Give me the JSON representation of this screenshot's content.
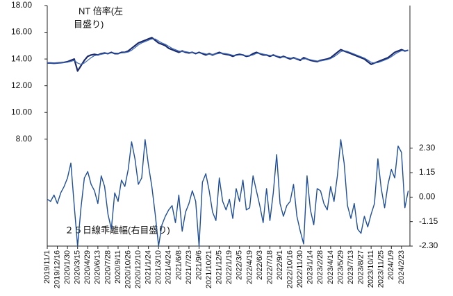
{
  "chart_data": {
    "type": "line",
    "annotations": [
      "NT 倍率(左",
      "目盛り)",
      "２５日線乖離幅(右目盛り)"
    ],
    "categories": [
      "2019/11/1",
      null,
      null,
      "2019/12/16",
      null,
      null,
      "2020/1/30",
      null,
      null,
      "2020/3/15",
      null,
      null,
      "2020/4/29",
      null,
      null,
      "2020/6/13",
      null,
      null,
      "2020/7/28",
      null,
      null,
      "2020/9/11",
      null,
      null,
      "2020/10/26",
      null,
      null,
      "2020/12/10",
      null,
      null,
      "2021/1/24",
      null,
      null,
      "2021/3/10",
      null,
      null,
      "2021/4/24",
      null,
      null,
      "2021/6/8",
      null,
      null,
      "2021/7/23",
      null,
      null,
      "2021/9/6",
      null,
      null,
      "2021/10/21",
      null,
      null,
      "2021/12/5",
      null,
      null,
      "2022/1/19",
      null,
      null,
      "2022/3/5",
      null,
      null,
      "2022/4/19",
      null,
      null,
      "2022/6/3",
      null,
      null,
      "2022/7/18",
      null,
      null,
      "2022/9/1",
      null,
      null,
      "2022/10/16",
      null,
      null,
      "2022/11/30",
      null,
      null,
      "2023/1/14",
      null,
      null,
      "2023/2/28",
      null,
      null,
      "2023/4/14",
      null,
      null,
      "2023/5/29",
      null,
      null,
      "2023/7/13",
      null,
      null,
      "2023/8/27",
      null,
      null,
      "2023/10/11",
      null,
      null,
      "2023/11/25",
      null,
      null,
      "2024/1/9",
      null,
      null,
      "2024/2/23",
      null,
      null
    ],
    "series": [
      {
        "color": "#1b2a6b",
        "values": [
          13.7,
          13.7,
          13.68,
          13.7,
          13.72,
          13.75,
          13.8,
          13.9,
          14.0,
          13.1,
          13.5,
          13.9,
          14.2,
          14.3,
          14.35,
          14.3,
          14.4,
          14.45,
          14.4,
          14.5,
          14.4,
          14.4,
          14.5,
          14.5,
          14.6,
          14.8,
          15.0,
          15.2,
          15.3,
          15.4,
          15.5,
          15.6,
          15.4,
          15.2,
          15.1,
          15.0,
          14.8,
          14.7,
          14.6,
          14.5,
          14.6,
          14.5,
          14.45,
          14.5,
          14.4,
          14.5,
          14.4,
          14.3,
          14.4,
          14.3,
          14.4,
          14.5,
          14.4,
          14.35,
          14.3,
          14.2,
          14.3,
          14.35,
          14.3,
          14.2,
          14.25,
          14.4,
          14.5,
          14.4,
          14.3,
          14.3,
          14.2,
          14.3,
          14.2,
          14.1,
          14.2,
          14.1,
          14.0,
          14.1,
          14.0,
          13.9,
          14.1,
          14.0,
          13.9,
          13.85,
          13.8,
          13.9,
          13.95,
          14.0,
          14.1,
          14.3,
          14.5,
          14.7,
          14.6,
          14.5,
          14.4,
          14.3,
          14.2,
          14.1,
          14.0,
          13.8,
          13.6,
          13.7,
          13.8,
          13.9,
          14.0,
          14.1,
          14.3,
          14.5,
          14.6,
          14.7,
          14.6,
          14.65
        ]
      },
      {
        "color": "#3a66b8",
        "values": [
          13.7,
          13.7,
          13.7,
          13.7,
          13.71,
          13.73,
          13.76,
          13.82,
          13.9,
          13.7,
          13.6,
          13.7,
          13.9,
          14.1,
          14.25,
          14.3,
          14.35,
          14.4,
          14.42,
          14.45,
          14.45,
          14.43,
          14.45,
          14.48,
          14.52,
          14.65,
          14.85,
          15.05,
          15.2,
          15.3,
          15.4,
          15.5,
          15.5,
          15.35,
          15.2,
          15.1,
          14.95,
          14.8,
          14.7,
          14.6,
          14.55,
          14.55,
          14.5,
          14.48,
          14.45,
          14.45,
          14.45,
          14.38,
          14.35,
          14.35,
          14.37,
          14.42,
          14.43,
          14.4,
          14.35,
          14.28,
          14.27,
          14.3,
          14.3,
          14.25,
          14.25,
          14.3,
          14.42,
          14.43,
          14.37,
          14.32,
          14.27,
          14.25,
          14.23,
          14.17,
          14.15,
          14.13,
          14.07,
          14.05,
          14.03,
          13.97,
          14.0,
          14.02,
          13.95,
          13.9,
          13.85,
          13.85,
          13.9,
          13.95,
          14.03,
          14.17,
          14.35,
          14.55,
          14.62,
          14.57,
          14.47,
          14.37,
          14.27,
          14.17,
          14.07,
          13.92,
          13.75,
          13.7,
          13.73,
          13.82,
          13.92,
          14.02,
          14.17,
          14.35,
          14.5,
          14.62,
          14.63,
          14.63
        ]
      },
      {
        "color": "#1f4e9a",
        "axis": "y2",
        "values": [
          -0.1,
          -0.2,
          0.1,
          -0.3,
          0.2,
          0.5,
          0.9,
          1.6,
          -0.4,
          -2.3,
          -0.5,
          0.9,
          1.2,
          0.6,
          0.3,
          -0.3,
          1.0,
          0.5,
          -0.8,
          -1.5,
          0.2,
          -0.2,
          0.8,
          0.5,
          1.3,
          2.6,
          1.8,
          0.6,
          0.9,
          2.7,
          1.5,
          0.5,
          -0.8,
          -2.3,
          -1.3,
          -0.9,
          -0.6,
          -0.4,
          -1.2,
          0.1,
          -1.6,
          -0.7,
          -0.3,
          0.3,
          -0.2,
          -2.3,
          0.7,
          1.1,
          0.3,
          -0.7,
          -1.1,
          0.9,
          -0.2,
          -0.6,
          -0.1,
          -1.0,
          0.4,
          -0.2,
          0.8,
          -0.6,
          -0.5,
          1.0,
          0.3,
          -0.4,
          -1.2,
          0.4,
          -1.1,
          0.2,
          2.0,
          -0.3,
          -0.9,
          -0.4,
          -0.2,
          0.6,
          -0.9,
          -1.6,
          -2.2,
          1.0,
          -0.6,
          -1.3,
          0.4,
          0.3,
          -0.3,
          -0.6,
          0.5,
          -0.2,
          1.0,
          2.7,
          1.6,
          -0.4,
          -1.0,
          -0.3,
          -1.5,
          -1.7,
          -0.9,
          -1.4,
          -0.8,
          -0.3,
          1.8,
          0.4,
          -0.5,
          0.6,
          1.3,
          0.9,
          2.4,
          2.1,
          -0.5,
          0.3
        ]
      }
    ],
    "ylim": [
      0,
      18
    ],
    "yticks": [
      {
        "value": 8,
        "label": "8.00"
      },
      {
        "value": 10,
        "label": "10.00"
      },
      {
        "value": 12,
        "label": "12.00"
      },
      {
        "value": 14,
        "label": "14.00"
      },
      {
        "value": 16,
        "label": "16.00"
      },
      {
        "value": 18,
        "label": "18.00"
      }
    ],
    "y2lim": [
      -2.3,
      9.0
    ],
    "y2ticks": [
      {
        "value": -2.3,
        "label": "-2.30"
      },
      {
        "value": -1.15,
        "label": "-1.15"
      },
      {
        "value": 0,
        "label": "0.00"
      },
      {
        "value": 1.15,
        "label": "1.15"
      },
      {
        "value": 2.3,
        "label": "2.30"
      }
    ]
  }
}
